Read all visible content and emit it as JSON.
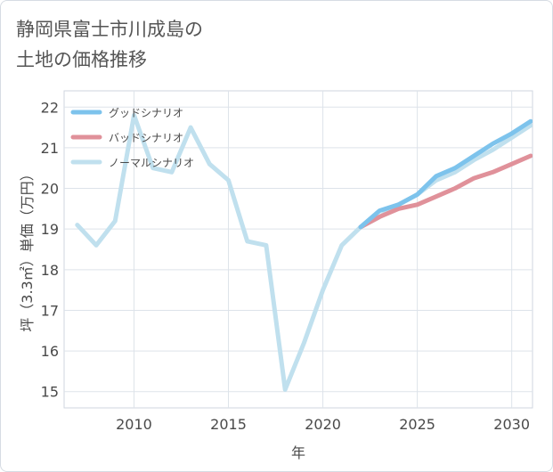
{
  "title_line1": "静岡県富士市川成島の",
  "title_line2": "土地の価格推移",
  "chart_data": {
    "type": "line",
    "title": "静岡県富士市川成島の土地の価格推移",
    "xlabel": "年",
    "ylabel": "坪（3.3㎡）単価（万円）",
    "xlim": [
      2006.3,
      2031.1
    ],
    "ylim": [
      14.6,
      22.4
    ],
    "xticks": [
      2010,
      2015,
      2020,
      2025,
      2030
    ],
    "yticks": [
      15,
      16,
      17,
      18,
      19,
      20,
      21,
      22
    ],
    "grid": true,
    "legend_position": "top-left",
    "series": [
      {
        "name": "グッドシナリオ",
        "color": "#7dc3ec",
        "x": [
          2022,
          2023,
          2024,
          2025,
          2026,
          2027,
          2028,
          2029,
          2030,
          2031
        ],
        "y": [
          19.05,
          19.45,
          19.6,
          19.85,
          20.3,
          20.5,
          20.8,
          21.1,
          21.35,
          21.65
        ]
      },
      {
        "name": "バッドシナリオ",
        "color": "#e0919a",
        "x": [
          2022,
          2023,
          2024,
          2025,
          2026,
          2027,
          2028,
          2029,
          2030,
          2031
        ],
        "y": [
          19.05,
          19.3,
          19.5,
          19.6,
          19.8,
          20.0,
          20.25,
          20.4,
          20.6,
          20.8
        ]
      },
      {
        "name": "ノーマルシナリオ",
        "color": "#c0e0ee",
        "x": [
          2007,
          2008,
          2009,
          2010,
          2011,
          2012,
          2013,
          2014,
          2015,
          2016,
          2017,
          2018,
          2019,
          2020,
          2021,
          2022,
          2023,
          2024,
          2025,
          2026,
          2027,
          2028,
          2029,
          2030,
          2031
        ],
        "y": [
          19.1,
          18.6,
          19.2,
          21.8,
          20.5,
          20.4,
          21.5,
          20.6,
          20.2,
          18.7,
          18.6,
          15.05,
          16.2,
          17.5,
          18.6,
          19.05,
          19.3,
          19.6,
          19.85,
          20.2,
          20.4,
          20.7,
          20.95,
          21.25,
          21.55
        ]
      }
    ]
  }
}
